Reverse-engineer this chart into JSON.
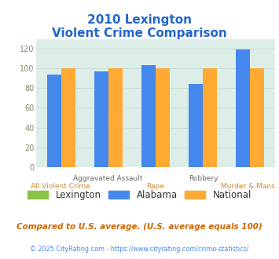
{
  "title_line1": "2010 Lexington",
  "title_line2": "Violent Crime Comparison",
  "x_label_top": [
    "",
    "Aggravated Assault",
    "",
    "Robbery",
    ""
  ],
  "x_label_bottom": [
    "All Violent Crime",
    "",
    "Rape",
    "",
    "Murder & Mans..."
  ],
  "alabama_values": [
    94,
    97,
    103,
    84,
    119
  ],
  "national_values": [
    100,
    100,
    100,
    100,
    100
  ],
  "lexington_color": "#8bc34a",
  "alabama_color": "#4488ee",
  "national_color": "#ffaa33",
  "ylim": [
    0,
    130
  ],
  "yticks": [
    0,
    20,
    40,
    60,
    80,
    100,
    120
  ],
  "background_color": "#ffffff",
  "plot_bg_color": "#ddeee8",
  "grid_color": "#c8ddd8",
  "title_color": "#2266cc",
  "x_top_color": "#666666",
  "x_bot_color": "#cc8833",
  "footer_text": "Compared to U.S. average. (U.S. average equals 100)",
  "copyright_text": "© 2025 CityRating.com - https://www.cityrating.com/crime-statistics/",
  "footer_color": "#cc6600",
  "copyright_color": "#4488ee",
  "legend_text_color": "#333333"
}
